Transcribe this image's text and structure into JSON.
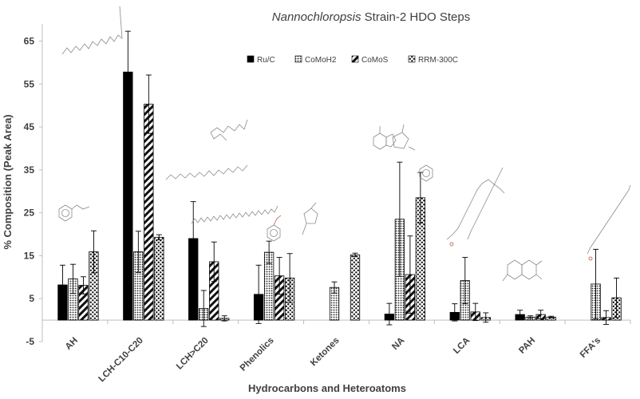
{
  "chart_data": {
    "type": "bar",
    "title_italic": "Nannochloropsis",
    "title_rest": " Strain-2 HDO Steps",
    "xlabel": "Hydrocarbons and Heteroatoms",
    "ylabel": "% Composition (Peak Area)",
    "ylim": [
      -5,
      69
    ],
    "yticks": [
      -5,
      5,
      15,
      25,
      35,
      45,
      55,
      65
    ],
    "grid": false,
    "legend_position": "top",
    "categories": [
      "AH",
      "LCH-C10-C20",
      "LCH>C20",
      "Phenolics",
      "Ketones",
      "NA",
      "LCA",
      "PAH",
      "FFA's"
    ],
    "series": [
      {
        "name": "Ru/C",
        "pattern": "solid-black",
        "values": [
          8.2,
          57.8,
          19.0,
          6.0,
          0,
          1.4,
          1.8,
          1.3,
          0
        ],
        "errors": [
          4.6,
          9.5,
          8.6,
          6.8,
          0,
          2.5,
          2.0,
          1.0,
          0
        ]
      },
      {
        "name": "CoMoH2",
        "pattern": "fine-dots",
        "values": [
          9.6,
          15.9,
          2.7,
          15.8,
          7.6,
          23.5,
          9.2,
          0.7,
          8.4
        ],
        "errors": [
          3.4,
          4.8,
          4.2,
          2.6,
          1.3,
          13.3,
          5.4,
          0.3,
          8.1
        ]
      },
      {
        "name": "CoMoS",
        "pattern": "diagonal-stripes",
        "values": [
          8.1,
          50.3,
          13.6,
          10.3,
          0,
          10.6,
          1.9,
          1.3,
          0.6
        ],
        "errors": [
          2.0,
          6.8,
          4.6,
          4.3,
          0,
          9.0,
          2.0,
          1.0,
          1.6
        ]
      },
      {
        "name": "RRM-300C",
        "pattern": "coarse-dots",
        "values": [
          15.9,
          19.3,
          0.4,
          9.8,
          15.2,
          28.5,
          0.6,
          0.7,
          5.2
        ],
        "errors": [
          4.9,
          0.6,
          0.6,
          5.7,
          0.4,
          5.9,
          1.1,
          0.2,
          4.6
        ]
      }
    ]
  }
}
